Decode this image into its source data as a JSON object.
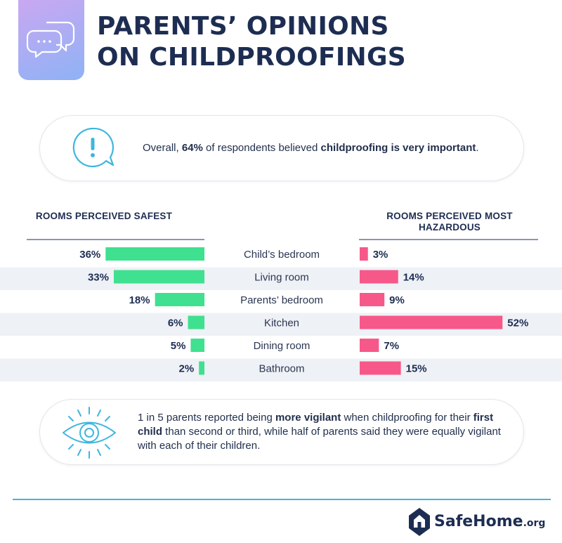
{
  "title": {
    "line1": "PARENTS’ OPINIONS",
    "line2": "ON CHILDPROOFINGS"
  },
  "callout_top": {
    "prefix": "Overall, ",
    "stat": "64%",
    "middle": " of respondents believed ",
    "emphasis": "childproofing is very important",
    "suffix": "."
  },
  "callout_bottom": {
    "t1": "1 in 5 parents reported being ",
    "b1": "more vigilant",
    "t2": " when childproofing for their ",
    "b2": "first child",
    "t3": " than second or third, while half of parents said they were equally vigilant with each of their children."
  },
  "chart_data": {
    "type": "bar",
    "left_header": "ROOMS PERCEIVED SAFEST",
    "right_header": "ROOMS PERCEIVED MOST HAZARDOUS",
    "categories": [
      "Child’s bedroom",
      "Living room",
      "Parents’ bedroom",
      "Kitchen",
      "Dining room",
      "Bathroom"
    ],
    "series": [
      {
        "name": "ROOMS PERCEIVED SAFEST",
        "values": [
          36,
          33,
          18,
          6,
          5,
          2
        ],
        "labels": [
          "36%",
          "33%",
          "18%",
          "6%",
          "5%",
          "2%"
        ],
        "color": "#3fe08f"
      },
      {
        "name": "ROOMS PERCEIVED MOST HAZARDOUS",
        "values": [
          3,
          14,
          9,
          52,
          7,
          15
        ],
        "labels": [
          "3%",
          "14%",
          "9%",
          "52%",
          "7%",
          "15%"
        ],
        "color": "#f7588a"
      }
    ],
    "unit": "%",
    "stripe_color": "#eef1f6"
  },
  "brand": {
    "name": "SafeHome",
    "suffix": ".org"
  },
  "colors": {
    "navy": "#1d2d52",
    "accent_blue": "#3fb6dd",
    "safe_green": "#3fe08f",
    "hazard_pink": "#f7588a"
  }
}
